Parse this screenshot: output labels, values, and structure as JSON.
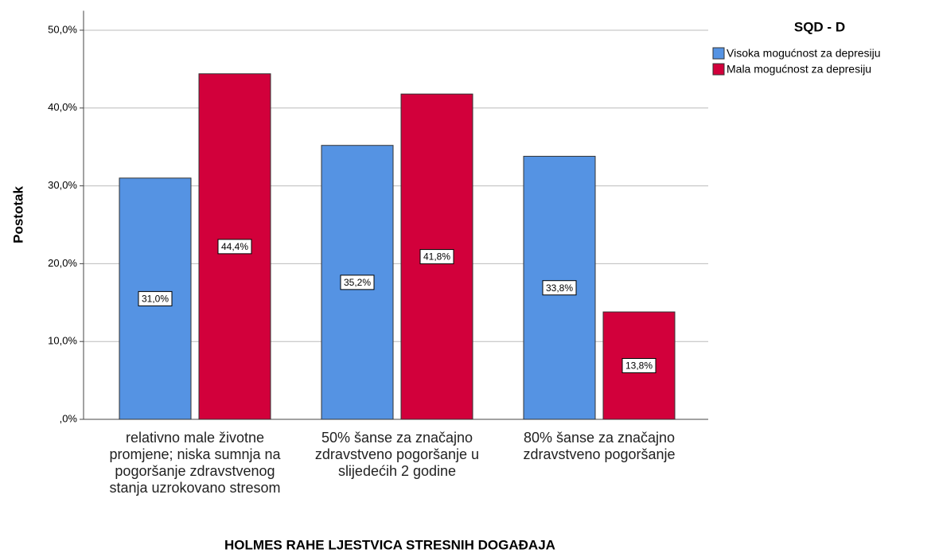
{
  "chart_data": {
    "type": "bar",
    "x_label": "HOLMES RAHE LJESTVICA STRESNIH DOGAĐAJA",
    "y_label": "Postotak",
    "legend_title": "SQD - D",
    "categories": [
      "relativno male životne promjene; niska sumnja na pogoršanje zdravstvenog stanja uzrokovano stresom",
      "50% šanse za značajno zdravstveno pogoršanje u slijedećih 2 godine",
      "80% šanse za značajno zdravstveno pogoršanje"
    ],
    "series": [
      {
        "name": "Visoka mogućnost za depresiju",
        "color": "#5593e3",
        "values": [
          31.0,
          35.2,
          33.8
        ],
        "value_labels": [
          "31,0%",
          "35,2%",
          "33,8%"
        ]
      },
      {
        "name": "Mala mogućnost za depresiju",
        "color": "#d2003b",
        "values": [
          44.4,
          41.8,
          13.8
        ],
        "value_labels": [
          "44,4%",
          "41,8%",
          "13,8%"
        ]
      }
    ],
    "ylim": [
      0,
      52.5
    ],
    "yticks": [
      {
        "value": 0,
        "label": ",0%"
      },
      {
        "value": 10,
        "label": "10,0%"
      },
      {
        "value": 20,
        "label": "20,0%"
      },
      {
        "value": 30,
        "label": "30,0%"
      },
      {
        "value": 40,
        "label": "40,0%"
      },
      {
        "value": 50,
        "label": "50,0%"
      }
    ],
    "grid": true
  }
}
